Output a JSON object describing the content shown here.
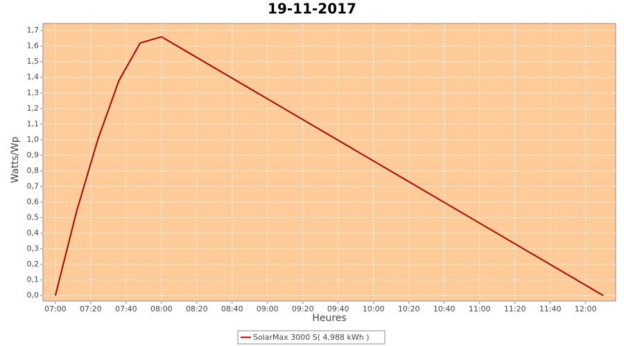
{
  "chart_data": {
    "type": "line",
    "title": "19-11-2017",
    "x_label": "Heures",
    "y_label": "Watts/Wp",
    "x": [
      "07:00",
      "07:12",
      "07:24",
      "07:36",
      "07:48",
      "08:00",
      "12:10"
    ],
    "series": [
      {
        "name": "SolarMax 3000 S( 4,988 kWh )",
        "color": "#b00000",
        "values": [
          0.0,
          0.54,
          1.0,
          1.38,
          1.62,
          1.66,
          0.0
        ]
      }
    ],
    "xlim": [
      "06:53",
      "12:17"
    ],
    "xticks": [
      "07:00",
      "07:20",
      "07:40",
      "08:00",
      "08:20",
      "08:40",
      "09:00",
      "09:20",
      "09:40",
      "10:00",
      "10:20",
      "10:40",
      "11:00",
      "11:20",
      "11:40",
      "12:00"
    ],
    "ylim": [
      -0.035,
      1.745
    ],
    "yticks": [
      {
        "value": 0,
        "label": "0,0"
      },
      {
        "value": 0.1,
        "label": "0,1"
      },
      {
        "value": 0.2,
        "label": "0,2"
      },
      {
        "value": 0.3,
        "label": "0,3"
      },
      {
        "value": 0.4,
        "label": "0,4"
      },
      {
        "value": 0.5,
        "label": "0,5"
      },
      {
        "value": 0.6,
        "label": "0,6"
      },
      {
        "value": 0.7,
        "label": "0,7"
      },
      {
        "value": 0.8,
        "label": "0,8"
      },
      {
        "value": 0.9,
        "label": "0,9"
      },
      {
        "value": 1,
        "label": "1,0"
      },
      {
        "value": 1.1,
        "label": "1,1"
      },
      {
        "value": 1.2,
        "label": "1,2"
      },
      {
        "value": 1.3,
        "label": "1,3"
      },
      {
        "value": 1.4,
        "label": "1,4"
      },
      {
        "value": 1.5,
        "label": "1,5"
      },
      {
        "value": 1.6,
        "label": "1,6"
      },
      {
        "value": 1.7,
        "label": "1,7"
      }
    ],
    "grid": true,
    "plot_background": "#ffcc99"
  }
}
